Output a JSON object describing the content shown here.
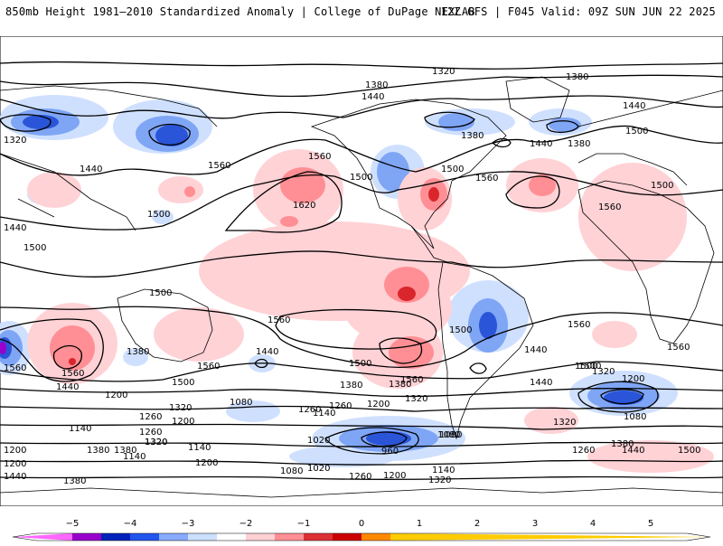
{
  "header": {
    "left": "850mb Height 1981–2010 Standardized Anomaly | College of DuPage NEXLAB",
    "right": "12Z GFS | F045 Valid: 09Z SUN JUN 22 2025"
  },
  "contour_labels": [
    "1320",
    "1380",
    "1380",
    "1440",
    "1440",
    "1320",
    "1380",
    "1380",
    "1440",
    "1440",
    "1500",
    "1560",
    "1500",
    "1560",
    "1620",
    "1500",
    "1440",
    "1500",
    "1500",
    "1560",
    "1500",
    "1560",
    "1560",
    "1500",
    "1560",
    "1500",
    "1500",
    "1380",
    "1560",
    "1560",
    "1440",
    "1440",
    "1380",
    "1500",
    "1500",
    "1560",
    "1560",
    "1560",
    "1440",
    "1500",
    "1320",
    "1200",
    "1080",
    "1320",
    "1440",
    "1320",
    "1080",
    "1200",
    "1260",
    "1380",
    "1320",
    "1200",
    "1140",
    "1260",
    "1200",
    "1080",
    "1140",
    "1140",
    "1200",
    "1260",
    "1320",
    "1140",
    "1020",
    "960",
    "1080",
    "1380",
    "1440",
    "1500",
    "1380",
    "1260",
    "1200",
    "1320",
    "1440",
    "1380",
    "1080",
    "1020",
    "1260",
    "1200",
    "1140",
    "1320",
    "1380",
    "1200",
    "1260"
  ],
  "colorbar": {
    "ticks": [
      "−5",
      "−4",
      "−3",
      "−2",
      "−1",
      "0",
      "1",
      "2",
      "3",
      "4",
      "5"
    ],
    "colors": [
      "#ff66ff",
      "#9900cc",
      "#0022bb",
      "#2255ee",
      "#88aaff",
      "#cce0ff",
      "#ffffff",
      "#ffd0d4",
      "#ff8f94",
      "#dd3035",
      "#cc0000",
      "#ff8800",
      "#ffcc00"
    ]
  },
  "colors": {
    "negative_light": "#cfe0ff",
    "negative_mid": "#7fa5f5",
    "negative_strong": "#2a55d8",
    "positive_light": "#ffd2d6",
    "positive_mid": "#ff8f94",
    "positive_strong": "#d8262c",
    "contour": "#000000",
    "coastline": "#000000"
  }
}
